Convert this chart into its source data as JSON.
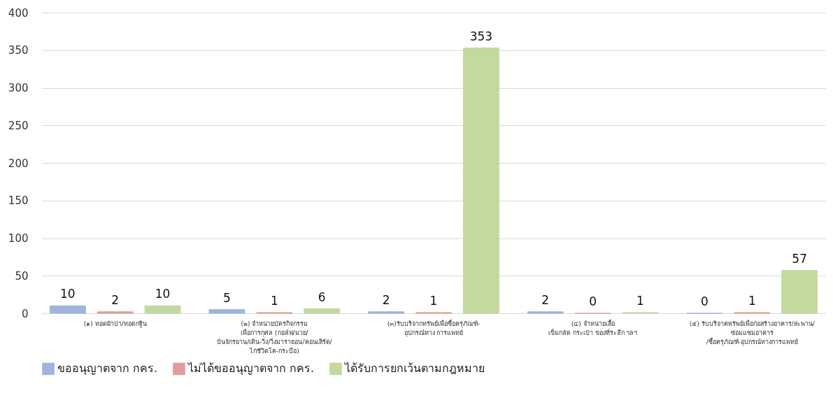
{
  "chart_data": {
    "type": "bar",
    "categories": [
      "(๑) ทอดผ้าป่า/ทอดกฐิน",
      "(๒) จำหน่ายบัตรกิจกรรม\nเพื่อการกุศล (กอล์ฟ/มวย/\nปั่นจักรยาน/เดิน-วิ่ง/วิ่งมาราธอน/คอนเสิร์ต/\nไก่ชีวิตโค-กระบือ)",
      "(๓)รับบริจากทรัพย์เพื่อซื้อครุภัณฑ์-\nอุปกรณ์ทาง  การแพทย์",
      "(๔) จำหน่ายเสื้อ\nเข็มกลัด กระเป๋า ของที่ระลึก ฯลฯ",
      "(๕) รับบริจาคทรัพย์เพื่อก่อสร้างอาคาร/สะพาน/\nซ่อมแซมอาคาร\n/ซื้อครุภัณฑ์-อุปกรณ์ทางการแพทย์"
    ],
    "series": [
      {
        "name": "ขออนุญาตจาก กคร.",
        "color": "#9db5db",
        "values": [
          10,
          5,
          2,
          2,
          0
        ]
      },
      {
        "name": "ไม่ได้ขออนุญาตจาก กคร.",
        "color": "#e19c9c",
        "values": [
          2,
          1,
          1,
          0,
          1
        ]
      },
      {
        "name": "ได้รับการยกเว้นตามกฎหมาย",
        "color": "#c3d9a0",
        "values": [
          10,
          6,
          353,
          1,
          57
        ]
      }
    ],
    "ylim": [
      0,
      400
    ],
    "yticks": [
      0,
      50,
      100,
      150,
      200,
      250,
      300,
      350,
      400
    ],
    "grid": "y",
    "legend": "bottom",
    "data_labels": true
  }
}
